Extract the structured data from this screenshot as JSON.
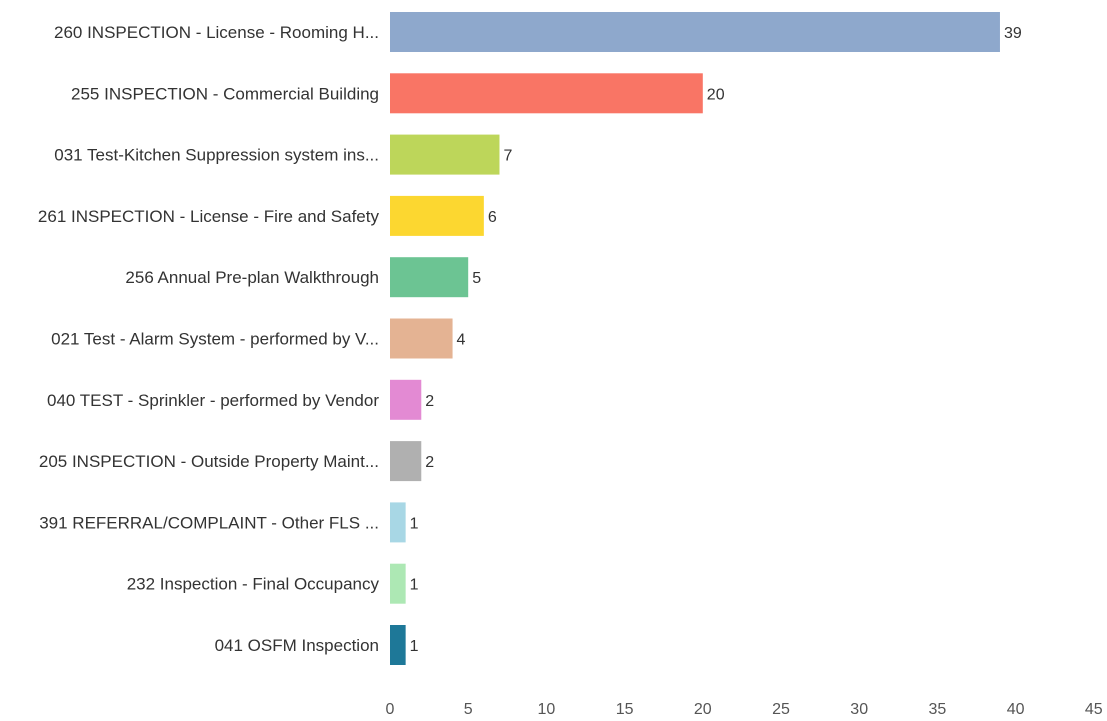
{
  "chart_data": {
    "type": "bar",
    "orientation": "horizontal",
    "title": "",
    "xlabel": "",
    "ylabel": "",
    "xlim": [
      0,
      45
    ],
    "x_ticks": [
      0,
      5,
      10,
      15,
      20,
      25,
      30,
      35,
      40,
      45
    ],
    "grid": false,
    "legend": "none",
    "categories": [
      "260 INSPECTION - License - Rooming H...",
      "255 INSPECTION - Commercial Building",
      "031 Test-Kitchen Suppression system ins...",
      "261 INSPECTION - License - Fire and Safety",
      "256 Annual Pre-plan Walkthrough",
      "021 Test - Alarm System - performed by V...",
      "040 TEST - Sprinkler - performed by Vendor",
      "205 INSPECTION - Outside Property Maint...",
      "391 REFERRAL/COMPLAINT - Other FLS ...",
      "232 Inspection - Final Occupancy",
      "041 OSFM Inspection"
    ],
    "values": [
      39,
      20,
      7,
      6,
      5,
      4,
      2,
      2,
      1,
      1,
      1
    ],
    "colors": [
      "#8ea8cc",
      "#f97565",
      "#bdd65a",
      "#fcd730",
      "#6cc493",
      "#e4b393",
      "#e38ad3",
      "#b0b0b0",
      "#a8d7e5",
      "#ade8b4",
      "#1e7898"
    ]
  }
}
